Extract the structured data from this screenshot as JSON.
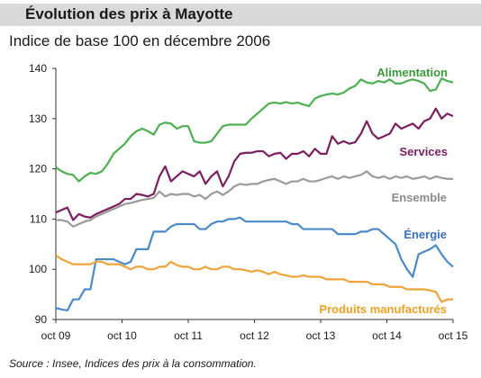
{
  "header": {
    "title": "Évolution des prix à Mayotte",
    "subtitle": "Indice de base 100 en décembre 2006"
  },
  "footer": {
    "source": "Source : Insee, Indices des prix à la consommation."
  },
  "chart_data": {
    "type": "line",
    "title": "Évolution des prix à Mayotte",
    "subtitle": "Indice de base 100 en décembre 2006",
    "xlabel": "",
    "ylabel": "",
    "x_tick_labels": [
      "oct 09",
      "oct 10",
      "oct 11",
      "oct 12",
      "oct 13",
      "oct 14",
      "oct 15"
    ],
    "x_start": "oct 09",
    "x_end": "oct 15",
    "ylim": [
      90,
      140
    ],
    "y_ticks": [
      90,
      100,
      110,
      120,
      130,
      140
    ],
    "grid": false,
    "legend": "inline labels",
    "series": [
      {
        "name": "Alimentation",
        "color": "#4caf50",
        "label_color": "#3a9a3a",
        "values": [
          120.3,
          119.5,
          119.0,
          118.8,
          117.5,
          118.5,
          119.2,
          119.0,
          119.5,
          121.0,
          123.0,
          124.0,
          125.0,
          126.5,
          127.5,
          128.0,
          127.5,
          126.8,
          128.8,
          129.2,
          129.0,
          128.0,
          128.5,
          128.5,
          125.5,
          125.2,
          125.2,
          125.5,
          127.0,
          128.5,
          128.8,
          128.8,
          128.8,
          128.8,
          130.0,
          131.0,
          132.0,
          133.0,
          133.2,
          133.0,
          133.3,
          133.0,
          133.2,
          132.8,
          132.5,
          134.0,
          134.5,
          134.8,
          135.0,
          134.8,
          135.2,
          136.0,
          136.5,
          137.8,
          137.2,
          137.0,
          137.5,
          137.2,
          137.8,
          137.0,
          137.0,
          137.5,
          137.8,
          137.5,
          137.0,
          135.5,
          135.8,
          138.0,
          137.5,
          137.2
        ]
      },
      {
        "name": "Services",
        "color": "#7b1f60",
        "label_color": "#7b1f60",
        "values": [
          111.3,
          111.8,
          112.3,
          109.8,
          111.0,
          110.5,
          110.3,
          111.0,
          111.5,
          112.0,
          112.5,
          113.0,
          114.0,
          114.0,
          115.0,
          114.8,
          114.5,
          115.0,
          118.5,
          120.5,
          117.5,
          118.5,
          119.5,
          119.0,
          118.5,
          119.5,
          117.0,
          118.5,
          119.5,
          116.5,
          118.5,
          121.5,
          123.0,
          123.2,
          123.2,
          123.5,
          123.5,
          122.5,
          123.0,
          123.2,
          122.0,
          123.0,
          123.0,
          123.5,
          122.5,
          124.0,
          123.0,
          123.0,
          126.5,
          125.0,
          125.5,
          125.0,
          125.3,
          127.0,
          129.5,
          127.0,
          126.0,
          126.5,
          127.0,
          129.0,
          128.0,
          128.5,
          129.0,
          128.0,
          129.5,
          130.0,
          132.0,
          130.0,
          131.0,
          130.5
        ]
      },
      {
        "name": "Ensemble",
        "color": "#9a9a9a",
        "label_color": "#8c8c8c",
        "values": [
          109.8,
          109.8,
          109.5,
          108.5,
          109.0,
          109.5,
          109.8,
          110.5,
          111.0,
          111.5,
          112.0,
          112.5,
          113.0,
          113.2,
          113.5,
          113.8,
          114.0,
          114.2,
          115.5,
          114.5,
          115.0,
          114.8,
          115.0,
          115.0,
          114.5,
          114.8,
          114.0,
          115.0,
          115.5,
          114.8,
          115.5,
          116.5,
          117.0,
          116.8,
          117.0,
          117.0,
          117.5,
          117.8,
          118.0,
          117.5,
          117.0,
          117.5,
          117.5,
          118.0,
          117.5,
          117.5,
          117.8,
          118.2,
          118.5,
          118.0,
          118.5,
          118.2,
          118.5,
          118.8,
          119.5,
          118.5,
          118.2,
          118.5,
          118.0,
          118.5,
          118.2,
          118.5,
          118.0,
          118.2,
          118.5,
          118.0,
          118.5,
          118.2,
          118.0,
          118.0
        ]
      },
      {
        "name": "Énergie",
        "color": "#4a8ac8",
        "label_color": "#3a6fc0",
        "values": [
          92.3,
          92.0,
          91.8,
          94.0,
          94.0,
          96.0,
          96.0,
          102.0,
          102.0,
          102.0,
          102.0,
          101.5,
          101.0,
          101.5,
          104.0,
          104.0,
          104.0,
          107.5,
          107.5,
          107.5,
          108.5,
          109.0,
          109.0,
          109.0,
          109.0,
          108.0,
          108.0,
          109.0,
          109.5,
          109.5,
          110.0,
          110.0,
          110.3,
          109.5,
          109.5,
          109.5,
          109.5,
          109.5,
          109.5,
          109.5,
          109.5,
          109.0,
          109.0,
          108.0,
          108.0,
          108.0,
          108.0,
          108.0,
          108.0,
          107.0,
          107.0,
          107.0,
          107.0,
          107.5,
          107.5,
          108.0,
          108.0,
          107.0,
          106.0,
          105.0,
          102.0,
          100.0,
          98.5,
          103.0,
          103.5,
          104.0,
          104.8,
          103.0,
          101.5,
          100.5
        ]
      },
      {
        "name": "Produits manufacturés",
        "color": "#f0a33a",
        "label_color": "#f0a020",
        "values": [
          102.8,
          102.0,
          101.5,
          101.0,
          101.0,
          101.0,
          101.0,
          101.5,
          101.5,
          101.0,
          101.0,
          101.0,
          100.5,
          100.0,
          100.5,
          100.5,
          100.0,
          100.0,
          100.5,
          100.5,
          101.5,
          100.8,
          100.5,
          100.5,
          100.0,
          100.0,
          100.5,
          100.0,
          100.0,
          100.5,
          100.5,
          100.0,
          100.0,
          99.8,
          99.5,
          99.8,
          99.5,
          99.0,
          99.5,
          99.0,
          98.8,
          98.5,
          98.5,
          98.8,
          98.5,
          98.5,
          98.5,
          98.0,
          98.0,
          98.0,
          98.0,
          97.5,
          97.5,
          97.5,
          97.5,
          97.0,
          97.0,
          97.0,
          96.5,
          96.5,
          96.5,
          96.0,
          96.0,
          96.0,
          96.0,
          95.8,
          95.5,
          93.5,
          94.0,
          94.0
        ]
      }
    ]
  }
}
